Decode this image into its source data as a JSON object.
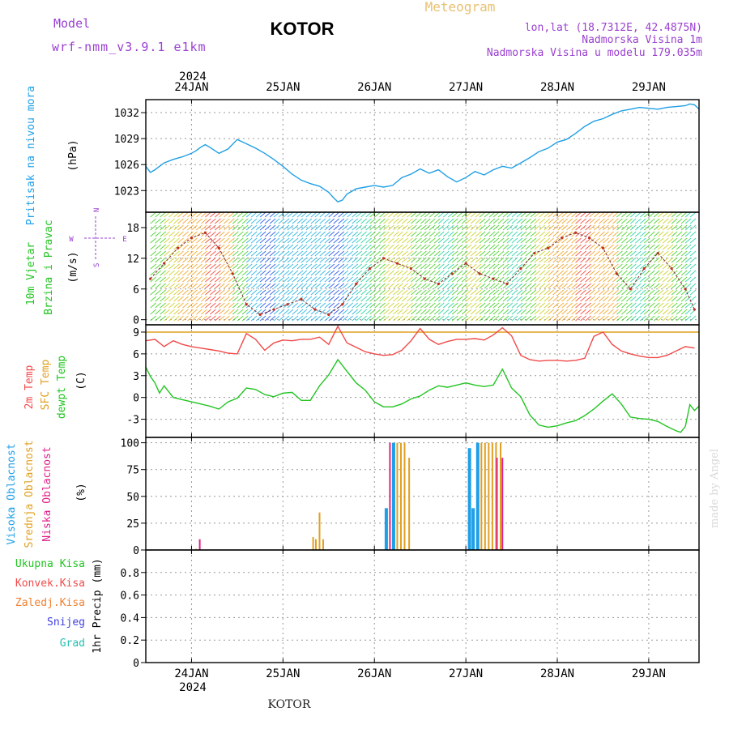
{
  "header": {
    "model_label": "Model",
    "model_name": "wrf-nmm_v3.9.1 e1km",
    "station_title": "KOTOR",
    "meteogram_label": "Meteogram",
    "coords": "lon,lat (18.7312E, 42.4875N)",
    "altitude": "Nadmorska Visina 1m",
    "model_altitude": "Nadmorska Visina u modelu 179.035m"
  },
  "footer": {
    "station": "KOTOR",
    "credit": "made by Angel"
  },
  "colors": {
    "pressure": "#1f9fe6",
    "temp2m": "#f04a4a",
    "sfc_temp": "#e0a020",
    "dewpoint": "#22c422",
    "cloud_high": "#1f9fe6",
    "cloud_mid": "#e0a020",
    "cloud_low": "#e0208a",
    "title_purple": "#9a40d0"
  },
  "chart_data": [
    {
      "type": "line",
      "panel": "pressure",
      "ylabel_lines": [
        "Pritisak na nivou mora",
        "(hPa)"
      ],
      "ylim": [
        1020.5,
        1033.5
      ],
      "yticks": [
        1023,
        1026,
        1029,
        1032
      ],
      "x_start_day": 23.5,
      "x_end_day": 29.55,
      "xtick_days": [
        24,
        25,
        26,
        27,
        28,
        29
      ],
      "xtick_labels": [
        "24JAN",
        "25JAN",
        "26JAN",
        "27JAN",
        "28JAN",
        "29JAN"
      ],
      "top_year_label": "2024",
      "grid": true,
      "series": [
        {
          "x": [
            23.5,
            23.55,
            23.6,
            23.7,
            23.8,
            23.9,
            24.0,
            24.05,
            24.1,
            24.15,
            24.2,
            24.3,
            24.4,
            24.5,
            24.6,
            24.7,
            24.8,
            24.9,
            25.0,
            25.1,
            25.2,
            25.3,
            25.4,
            25.5,
            25.55,
            25.6,
            25.65,
            25.7,
            25.8,
            25.9,
            26.0,
            26.1,
            26.2,
            26.3,
            26.4,
            26.5,
            26.6,
            26.7,
            26.8,
            26.9,
            27.0,
            27.1,
            27.2,
            27.3,
            27.4,
            27.5,
            27.6,
            27.7,
            27.8,
            27.9,
            28.0,
            28.1,
            28.2,
            28.3,
            28.4,
            28.5,
            28.6,
            28.7,
            28.8,
            28.9,
            29.0,
            29.1,
            29.2,
            29.3,
            29.4,
            29.45,
            29.5,
            29.55
          ],
          "y": [
            1025.8,
            1025.1,
            1025.4,
            1026.2,
            1026.6,
            1026.9,
            1027.3,
            1027.6,
            1028.0,
            1028.3,
            1028.0,
            1027.3,
            1027.8,
            1028.9,
            1028.4,
            1027.9,
            1027.3,
            1026.6,
            1025.8,
            1024.9,
            1024.2,
            1023.8,
            1023.5,
            1022.8,
            1022.2,
            1021.7,
            1021.9,
            1022.6,
            1023.2,
            1023.4,
            1023.6,
            1023.4,
            1023.6,
            1024.5,
            1024.9,
            1025.5,
            1025.0,
            1025.4,
            1024.6,
            1024.0,
            1024.5,
            1025.2,
            1024.8,
            1025.4,
            1025.8,
            1025.6,
            1026.2,
            1026.8,
            1027.5,
            1027.9,
            1028.6,
            1028.9,
            1029.6,
            1030.4,
            1031.0,
            1031.3,
            1031.8,
            1032.2,
            1032.4,
            1032.6,
            1032.5,
            1032.4,
            1032.6,
            1032.7,
            1032.8,
            1033.0,
            1032.9,
            1032.4
          ]
        }
      ]
    },
    {
      "type": "scatter",
      "panel": "wind",
      "ylabel_lines": [
        "10m Vjetar",
        "Brzina i Pravac",
        "(m/s)"
      ],
      "compass_labels": [
        "N",
        "W",
        "E",
        "S"
      ],
      "ylim": [
        -1,
        21
      ],
      "yticks": [
        0,
        6,
        12,
        18
      ],
      "series": [
        {
          "name": "wind speed",
          "x": [
            23.55,
            23.7,
            23.85,
            24.0,
            24.15,
            24.3,
            24.45,
            24.6,
            24.75,
            24.9,
            25.05,
            25.2,
            25.35,
            25.5,
            25.65,
            25.8,
            25.95,
            26.1,
            26.25,
            26.4,
            26.55,
            26.7,
            26.85,
            27.0,
            27.15,
            27.3,
            27.45,
            27.6,
            27.75,
            27.9,
            28.05,
            28.2,
            28.35,
            28.5,
            28.65,
            28.8,
            28.95,
            29.1,
            29.25,
            29.4,
            29.5
          ],
          "y": [
            8,
            11,
            14,
            16,
            17,
            14,
            9,
            3,
            1,
            2,
            3,
            4,
            2,
            1,
            3,
            7,
            10,
            12,
            11,
            10,
            8,
            7,
            9,
            11,
            9,
            8,
            7,
            10,
            13,
            14,
            16,
            17,
            16,
            14,
            9,
            6,
            10,
            13,
            10,
            6,
            2
          ]
        }
      ]
    },
    {
      "type": "line",
      "panel": "temperature",
      "ylabel_lines": [
        "2m Temp",
        "SFC Temp",
        "dewpt Temp",
        "(C)"
      ],
      "ylim": [
        -5.5,
        10
      ],
      "yticks": [
        -3,
        0,
        3,
        6,
        9
      ],
      "series": [
        {
          "name": "2m Temp",
          "x": [
            23.5,
            23.6,
            23.7,
            23.8,
            23.9,
            24.0,
            24.1,
            24.2,
            24.3,
            24.4,
            24.5,
            24.6,
            24.7,
            24.8,
            24.9,
            25.0,
            25.1,
            25.2,
            25.3,
            25.4,
            25.5,
            25.6,
            25.7,
            25.8,
            25.9,
            26.0,
            26.1,
            26.2,
            26.3,
            26.4,
            26.5,
            26.6,
            26.7,
            26.8,
            26.9,
            27.0,
            27.1,
            27.2,
            27.3,
            27.4,
            27.5,
            27.6,
            27.7,
            27.8,
            27.9,
            28.0,
            28.1,
            28.2,
            28.3,
            28.4,
            28.5,
            28.6,
            28.7,
            28.8,
            28.9,
            29.0,
            29.1,
            29.2,
            29.3,
            29.4,
            29.5
          ],
          "y": [
            7.8,
            8.0,
            7.0,
            7.8,
            7.3,
            7.0,
            6.8,
            6.6,
            6.4,
            6.1,
            6.0,
            8.8,
            8.0,
            6.5,
            7.5,
            7.9,
            7.8,
            8.0,
            8.0,
            8.3,
            7.3,
            9.8,
            7.5,
            6.9,
            6.3,
            6.0,
            5.8,
            5.9,
            6.5,
            7.8,
            9.5,
            8.0,
            7.3,
            7.7,
            8.0,
            8.0,
            8.1,
            7.9,
            8.6,
            9.6,
            8.5,
            5.8,
            5.2,
            5.0,
            5.1,
            5.1,
            5.0,
            5.1,
            5.4,
            8.4,
            9.0,
            7.3,
            6.4,
            6.0,
            5.7,
            5.5,
            5.5,
            5.8,
            6.4,
            7.0,
            6.8
          ]
        },
        {
          "name": "SFC Temp",
          "x": [
            23.5,
            29.55
          ],
          "y": [
            9.0,
            9.0
          ]
        },
        {
          "name": "dewpt Temp",
          "x": [
            23.5,
            23.55,
            23.6,
            23.65,
            23.7,
            23.8,
            23.9,
            24.0,
            24.1,
            24.2,
            24.3,
            24.4,
            24.5,
            24.6,
            24.7,
            24.8,
            24.9,
            25.0,
            25.1,
            25.2,
            25.3,
            25.4,
            25.5,
            25.6,
            25.7,
            25.8,
            25.9,
            26.0,
            26.1,
            26.2,
            26.3,
            26.4,
            26.5,
            26.6,
            26.7,
            26.8,
            26.9,
            27.0,
            27.1,
            27.2,
            27.3,
            27.4,
            27.5,
            27.6,
            27.7,
            27.8,
            27.9,
            28.0,
            28.1,
            28.2,
            28.3,
            28.4,
            28.5,
            28.6,
            28.7,
            28.8,
            28.9,
            29.0,
            29.1,
            29.2,
            29.3,
            29.35,
            29.4,
            29.45,
            29.5,
            29.55
          ],
          "y": [
            4.2,
            2.9,
            2.0,
            0.6,
            1.6,
            0.0,
            -0.3,
            -0.6,
            -0.9,
            -1.2,
            -1.6,
            -0.6,
            -0.1,
            1.3,
            1.1,
            0.4,
            0.1,
            0.6,
            0.7,
            -0.4,
            -0.4,
            1.6,
            3.1,
            5.2,
            3.6,
            2.0,
            1.0,
            -0.6,
            -1.3,
            -1.3,
            -0.9,
            -0.2,
            0.2,
            1.0,
            1.6,
            1.4,
            1.7,
            2.0,
            1.7,
            1.5,
            1.7,
            3.9,
            1.3,
            0.1,
            -2.4,
            -3.8,
            -4.1,
            -3.9,
            -3.5,
            -3.2,
            -2.5,
            -1.6,
            -0.5,
            0.5,
            -0.9,
            -2.7,
            -2.9,
            -3.0,
            -3.3,
            -4.0,
            -4.6,
            -4.8,
            -4.0,
            -1.0,
            -1.8,
            -1.2
          ]
        }
      ]
    },
    {
      "type": "bar",
      "panel": "clouds",
      "ylabel_lines": [
        "Visoka Oblacnost",
        "Srednja Oblacnost",
        "Niska Oblacnost",
        "(%)"
      ],
      "ylim": [
        0,
        105
      ],
      "yticks": [
        0,
        25,
        50,
        75,
        100
      ],
      "series": [
        {
          "name": "Visoka Oblacnost",
          "x": [
            26.13,
            26.21,
            27.04,
            27.08,
            27.13
          ],
          "values": [
            39,
            100,
            95,
            39,
            100
          ]
        },
        {
          "name": "Srednja Oblacnost",
          "x": [
            24.05,
            25.33,
            25.36,
            25.4,
            25.44,
            26.25,
            26.29,
            26.33,
            26.38,
            27.17,
            27.21,
            27.25,
            27.29,
            27.33,
            27.38
          ],
          "values": [
            1,
            12,
            10,
            35,
            10,
            100,
            100,
            100,
            86,
            100,
            100,
            100,
            100,
            100,
            100
          ]
        },
        {
          "name": "Niska Oblacnost",
          "x": [
            24.09,
            26.17,
            27.34,
            27.4
          ],
          "values": [
            10,
            100,
            86,
            86
          ]
        }
      ]
    },
    {
      "type": "line",
      "panel": "precipitation",
      "ylabel_lines": [
        "1hr Precip (mm)"
      ],
      "legend": [
        "Ukupna Kisa",
        "Konvek.Kisa",
        "Zaledj.Kisa",
        "Snijeg",
        "Grad"
      ],
      "ylim": [
        0,
        1
      ],
      "yticks": [
        0,
        0.2,
        0.4,
        0.6,
        0.8
      ],
      "ytick_labels": [
        "0",
        "0.2",
        "0.4",
        "0.6",
        "0.8"
      ],
      "bottom_year_label": "2024",
      "series": []
    }
  ]
}
